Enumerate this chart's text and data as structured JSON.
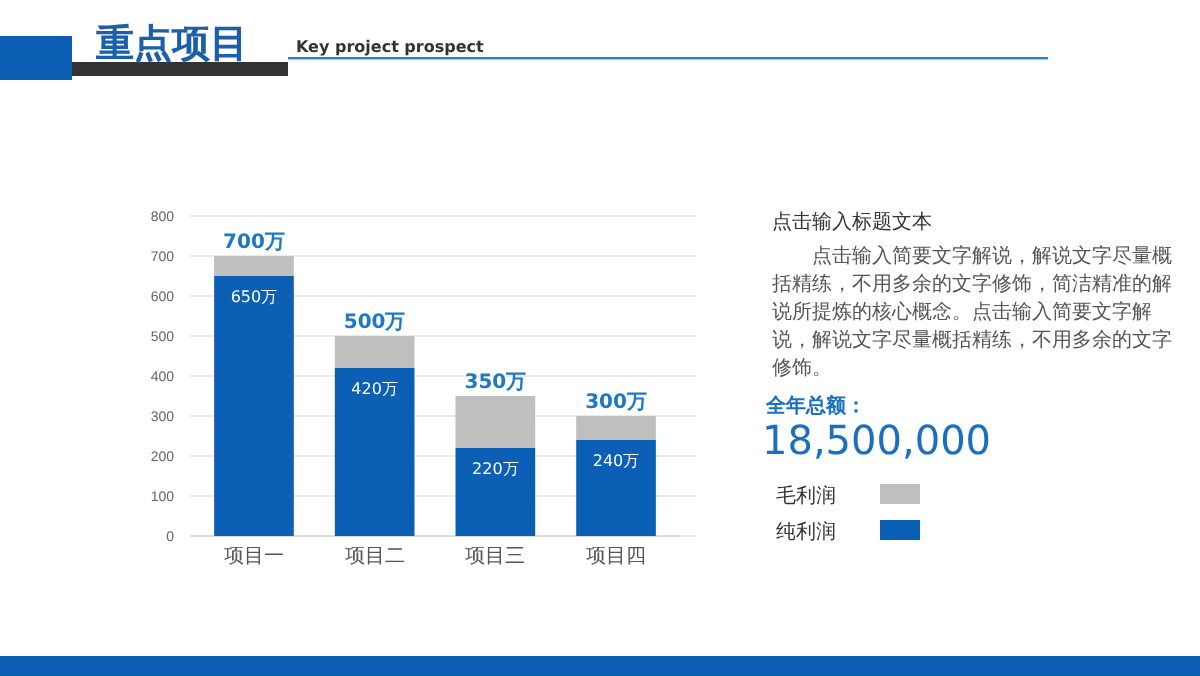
{
  "chart_data": {
    "type": "bar",
    "title": "重点项目",
    "subtitle": "Key project prospect",
    "categories": [
      "项目一",
      "项目二",
      "项目三",
      "项目四"
    ],
    "stacked": true,
    "series": [
      {
        "name": "纯利润",
        "color": "#0b5fb4",
        "values": [
          650,
          420,
          220,
          240
        ],
        "value_labels": [
          "650万",
          "420万",
          "220万",
          "240万"
        ]
      },
      {
        "name": "毛利润",
        "color": "#bfbfbf",
        "values": [
          50,
          80,
          130,
          60
        ]
      }
    ],
    "totals": [
      "700万",
      "500万",
      "350万",
      "300万"
    ],
    "ylim": [
      0,
      800
    ],
    "yticks": [
      0,
      100,
      200,
      300,
      400,
      500,
      600,
      700,
      800
    ],
    "grid": "y",
    "legend": "right",
    "annotations": [
      "点击输入标题文本",
      "点击输入简要文字解说，解说文字尽量概括精练，不用多余的文字修饰，简洁精准的解说所提炼的核心概念。点击输入简要文字解说，解说文字尽量概括精练，不用多余的文字修饰。",
      "全年总额：",
      "18,500,000"
    ]
  }
}
